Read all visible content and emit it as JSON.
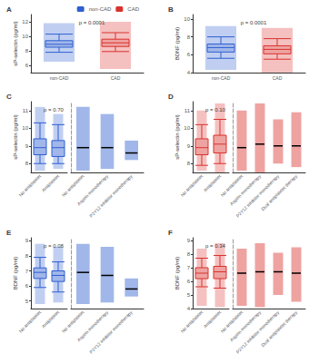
{
  "chart_data": [
    {
      "type": "boxplot",
      "title": "A",
      "y_label": "sP-selectin (pg/ml)",
      "ylim": [
        5,
        13
      ],
      "yticks": [
        6,
        8,
        10,
        12
      ],
      "grid": false,
      "categories": [
        "non-CAD",
        "CAD"
      ],
      "colors": [
        "#2f5fd0",
        "#d9322e"
      ],
      "boxes": [
        [
          7.8,
          8.5,
          8.9,
          9.4,
          10.3
        ],
        [
          7.9,
          8.6,
          9.1,
          9.6,
          10.5
        ]
      ],
      "point_ranges": [
        [
          6.5,
          11.8
        ],
        [
          5.5,
          12.0
        ]
      ],
      "annotation": "p = 0.0001",
      "legend": "top-right"
    },
    {
      "type": "boxplot",
      "title": "B",
      "y_label": "BDNF (pg/ml)",
      "ylim": [
        4,
        10.5
      ],
      "yticks": [
        4,
        6,
        8,
        10
      ],
      "grid": false,
      "categories": [
        "non-CAD",
        "CAD"
      ],
      "colors": [
        "#2f5fd0",
        "#d9322e"
      ],
      "boxes": [
        [
          5.6,
          6.3,
          6.8,
          7.2,
          8.0
        ],
        [
          5.5,
          6.1,
          6.6,
          7.0,
          7.8
        ]
      ],
      "point_ranges": [
        [
          4.3,
          9.2
        ],
        [
          4.0,
          9.0
        ]
      ],
      "annotation": "p = 0.0001"
    },
    {
      "type": "boxplot",
      "title": "C",
      "y_label": "sP-selectin (pg/ml)",
      "ylim": [
        7.5,
        11.5
      ],
      "yticks": [
        8,
        9,
        10,
        11
      ],
      "grid": false,
      "categories": [
        "No antiplatelet",
        "Antiplatelet"
      ],
      "colors": [
        "#2f5fd0",
        "#2f5fd0"
      ],
      "boxes": [
        [
          8.0,
          8.5,
          8.9,
          9.4,
          10.3
        ],
        [
          8.0,
          8.4,
          8.9,
          9.3,
          10.2
        ]
      ],
      "point_ranges": [
        [
          7.6,
          11.2
        ],
        [
          7.7,
          10.8
        ]
      ],
      "annotation": "p = 0.70",
      "groups": {
        "categories": [
          "No antiplatelet",
          "Aspirin monotherapy",
          "P2Y12 inhibitor monotherapy"
        ],
        "color": "#2f5fd0",
        "medians": [
          8.9,
          8.9,
          8.6
        ],
        "point_ranges": [
          [
            7.6,
            11.2
          ],
          [
            7.7,
            10.8
          ],
          [
            8.2,
            9.3
          ]
        ]
      }
    },
    {
      "type": "boxplot",
      "title": "D",
      "y_label": "sP-selectin (pg/ml)",
      "ylim": [
        7.5,
        11.5
      ],
      "yticks": [
        8,
        9,
        10,
        11
      ],
      "grid": false,
      "categories": [
        "No antiplatelet",
        "Antiplatelet"
      ],
      "colors": [
        "#d9322e",
        "#d9322e"
      ],
      "boxes": [
        [
          7.9,
          8.5,
          8.9,
          9.4,
          10.2
        ],
        [
          8.0,
          8.6,
          9.1,
          9.6,
          10.5
        ]
      ],
      "point_ranges": [
        [
          7.6,
          11.0
        ],
        [
          7.5,
          11.4
        ]
      ],
      "annotation": "p = 0.10",
      "groups": {
        "categories": [
          "No antiplatelet",
          "Aspirin monotherapy",
          "P2Y12 inhibitor monotherapy",
          "Dual antiplatelet therapy"
        ],
        "color": "#d9322e",
        "medians": [
          8.9,
          9.1,
          9.0,
          9.0
        ],
        "point_ranges": [
          [
            7.6,
            11.0
          ],
          [
            7.5,
            11.4
          ],
          [
            8.0,
            10.5
          ],
          [
            7.8,
            10.9
          ]
        ]
      }
    },
    {
      "type": "boxplot",
      "title": "E",
      "y_label": "BDNF (pg/ml)",
      "ylim": [
        4.5,
        9.2
      ],
      "yticks": [
        5,
        6,
        7,
        8,
        9
      ],
      "grid": false,
      "categories": [
        "No antiplatelet",
        "Antiplatelet"
      ],
      "colors": [
        "#2f5fd0",
        "#2f5fd0"
      ],
      "boxes": [
        [
          5.9,
          6.5,
          6.9,
          7.2,
          7.9
        ],
        [
          5.6,
          6.3,
          6.7,
          7.0,
          7.6
        ]
      ],
      "point_ranges": [
        [
          4.8,
          8.8
        ],
        [
          4.9,
          8.6
        ]
      ],
      "annotation": "p = 0.08",
      "groups": {
        "categories": [
          "No antiplatelet",
          "Aspirin monotherapy",
          "P2Y12 inhibitor monotherapy"
        ],
        "color": "#2f5fd0",
        "medians": [
          6.9,
          6.7,
          5.8
        ],
        "point_ranges": [
          [
            4.8,
            8.8
          ],
          [
            4.9,
            8.6
          ],
          [
            5.3,
            6.5
          ]
        ]
      }
    },
    {
      "type": "boxplot",
      "title": "F",
      "y_label": "BDNF (pg/ml)",
      "ylim": [
        4,
        9.2
      ],
      "yticks": [
        4,
        5,
        6,
        7,
        8,
        9
      ],
      "grid": false,
      "categories": [
        "No antiplatelet",
        "Antiplatelet"
      ],
      "colors": [
        "#d9322e",
        "#d9322e"
      ],
      "boxes": [
        [
          5.6,
          6.2,
          6.6,
          7.0,
          7.7
        ],
        [
          5.5,
          6.2,
          6.7,
          7.1,
          7.9
        ]
      ],
      "point_ranges": [
        [
          4.2,
          8.4
        ],
        [
          4.1,
          8.8
        ]
      ],
      "annotation": "p = 0.34",
      "groups": {
        "categories": [
          "No antiplatelet",
          "Aspirin monotherapy",
          "P2Y12 inhibitor monotherapy",
          "Dual antiplatelet therapy"
        ],
        "color": "#d9322e",
        "medians": [
          6.6,
          6.7,
          6.7,
          6.6
        ],
        "point_ranges": [
          [
            4.2,
            8.4
          ],
          [
            4.1,
            8.8
          ],
          [
            5.0,
            8.1
          ],
          [
            4.5,
            8.5
          ]
        ]
      }
    }
  ]
}
